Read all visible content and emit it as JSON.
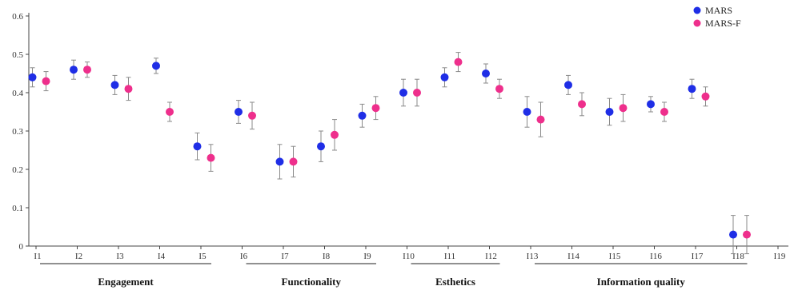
{
  "chart_data": {
    "type": "scatter",
    "categories": [
      "I1",
      "I2",
      "I3",
      "I4",
      "I5",
      "I6",
      "I7",
      "I8",
      "I9",
      "I10",
      "I11",
      "I12",
      "I13",
      "I14",
      "I15",
      "I16",
      "I17",
      "I18",
      "I19"
    ],
    "ylim": [
      0,
      0.6
    ],
    "yticks": [
      "0",
      "0.1",
      "0.2",
      "0.3",
      "0.4",
      "0.5",
      "0.6"
    ],
    "grid": false,
    "legend_position": "top-right",
    "error_bars": true,
    "series": [
      {
        "name": "MARS",
        "color": "#1f2ee6",
        "points": [
          {
            "category": "I1",
            "y": 0.44,
            "err": 0.025
          },
          {
            "category": "I2",
            "y": 0.46,
            "err": 0.025
          },
          {
            "category": "I3",
            "y": 0.42,
            "err": 0.025
          },
          {
            "category": "I4",
            "y": 0.47,
            "err": 0.02
          },
          {
            "category": "I5",
            "y": 0.26,
            "err": 0.035
          },
          {
            "category": "I6",
            "y": 0.35,
            "err": 0.03
          },
          {
            "category": "I7",
            "y": 0.22,
            "err": 0.045
          },
          {
            "category": "I8",
            "y": 0.26,
            "err": 0.04
          },
          {
            "category": "I9",
            "y": 0.34,
            "err": 0.03
          },
          {
            "category": "I10",
            "y": 0.4,
            "err": 0.035
          },
          {
            "category": "I11",
            "y": 0.44,
            "err": 0.025
          },
          {
            "category": "I12",
            "y": 0.45,
            "err": 0.025
          },
          {
            "category": "I13",
            "y": 0.35,
            "err": 0.04
          },
          {
            "category": "I14",
            "y": 0.42,
            "err": 0.025
          },
          {
            "category": "I15",
            "y": 0.35,
            "err": 0.035
          },
          {
            "category": "I16",
            "y": 0.37,
            "err": 0.02
          },
          {
            "category": "I17",
            "y": 0.41,
            "err": 0.025
          },
          {
            "category": "I18",
            "y": 0.03,
            "err": 0.05
          }
        ]
      },
      {
        "name": "MARS-F",
        "color": "#ee2f8c",
        "points": [
          {
            "category": "I1",
            "y": 0.43,
            "err": 0.025
          },
          {
            "category": "I2",
            "y": 0.46,
            "err": 0.02
          },
          {
            "category": "I3",
            "y": 0.41,
            "err": 0.03
          },
          {
            "category": "I4",
            "y": 0.35,
            "err": 0.025
          },
          {
            "category": "I5",
            "y": 0.23,
            "err": 0.035
          },
          {
            "category": "I6",
            "y": 0.34,
            "err": 0.035
          },
          {
            "category": "I7",
            "y": 0.22,
            "err": 0.04
          },
          {
            "category": "I8",
            "y": 0.29,
            "err": 0.04
          },
          {
            "category": "I9",
            "y": 0.36,
            "err": 0.03
          },
          {
            "category": "I10",
            "y": 0.4,
            "err": 0.035
          },
          {
            "category": "I11",
            "y": 0.48,
            "err": 0.025
          },
          {
            "category": "I12",
            "y": 0.41,
            "err": 0.025
          },
          {
            "category": "I13",
            "y": 0.33,
            "err": 0.045
          },
          {
            "category": "I14",
            "y": 0.37,
            "err": 0.03
          },
          {
            "category": "I15",
            "y": 0.36,
            "err": 0.035
          },
          {
            "category": "I16",
            "y": 0.35,
            "err": 0.025
          },
          {
            "category": "I17",
            "y": 0.39,
            "err": 0.025
          },
          {
            "category": "I18",
            "y": 0.03,
            "err": 0.05
          }
        ]
      }
    ],
    "groups": [
      {
        "label": "Engagement",
        "from": "I1",
        "to": "I5"
      },
      {
        "label": "Functionality",
        "from": "I6",
        "to": "I9"
      },
      {
        "label": "Esthetics",
        "from": "I10",
        "to": "I12"
      },
      {
        "label": "Information quality",
        "from": "I13",
        "to": "I18"
      }
    ]
  }
}
